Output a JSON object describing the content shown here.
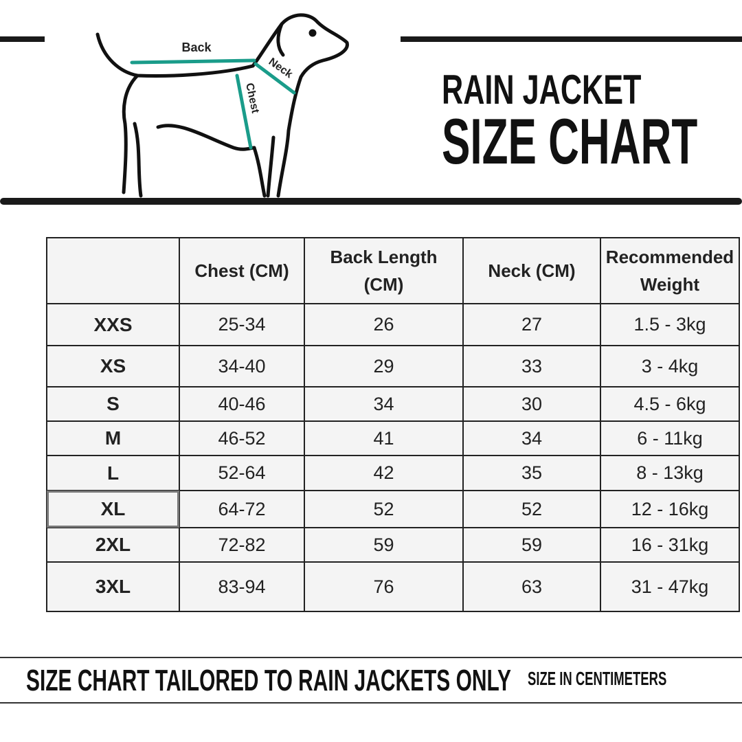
{
  "header": {
    "title_line1": "RAIN JACKET",
    "title_line2": "SIZE CHART"
  },
  "diagram": {
    "back": "Back",
    "neck": "Neck",
    "chest": "Chest"
  },
  "table": {
    "columns": [
      "",
      "Chest (CM)",
      "Back Length (CM)",
      "Neck (CM)",
      "Recommended Weight"
    ],
    "rows": [
      [
        "XXS",
        "25-34",
        "26",
        "27",
        "1.5 - 3kg"
      ],
      [
        "XS",
        "34-40",
        "29",
        "33",
        "3 - 4kg"
      ],
      [
        "S",
        "40-46",
        "34",
        "30",
        "4.5 - 6kg"
      ],
      [
        "M",
        "46-52",
        "41",
        "34",
        "6 - 11kg"
      ],
      [
        "L",
        "52-64",
        "42",
        "35",
        "8 - 13kg"
      ],
      [
        "XL",
        "64-72",
        "52",
        "52",
        "12 - 16kg"
      ],
      [
        "2XL",
        "72-82",
        "59",
        "59",
        "16 - 31kg"
      ],
      [
        "3XL",
        "83-94",
        "76",
        "63",
        "31 - 47kg"
      ]
    ]
  },
  "footer": {
    "note": "SIZE CHART TAILORED TO RAIN JACKETS ONLY",
    "units": "SIZE IN CENTIMETERS"
  }
}
